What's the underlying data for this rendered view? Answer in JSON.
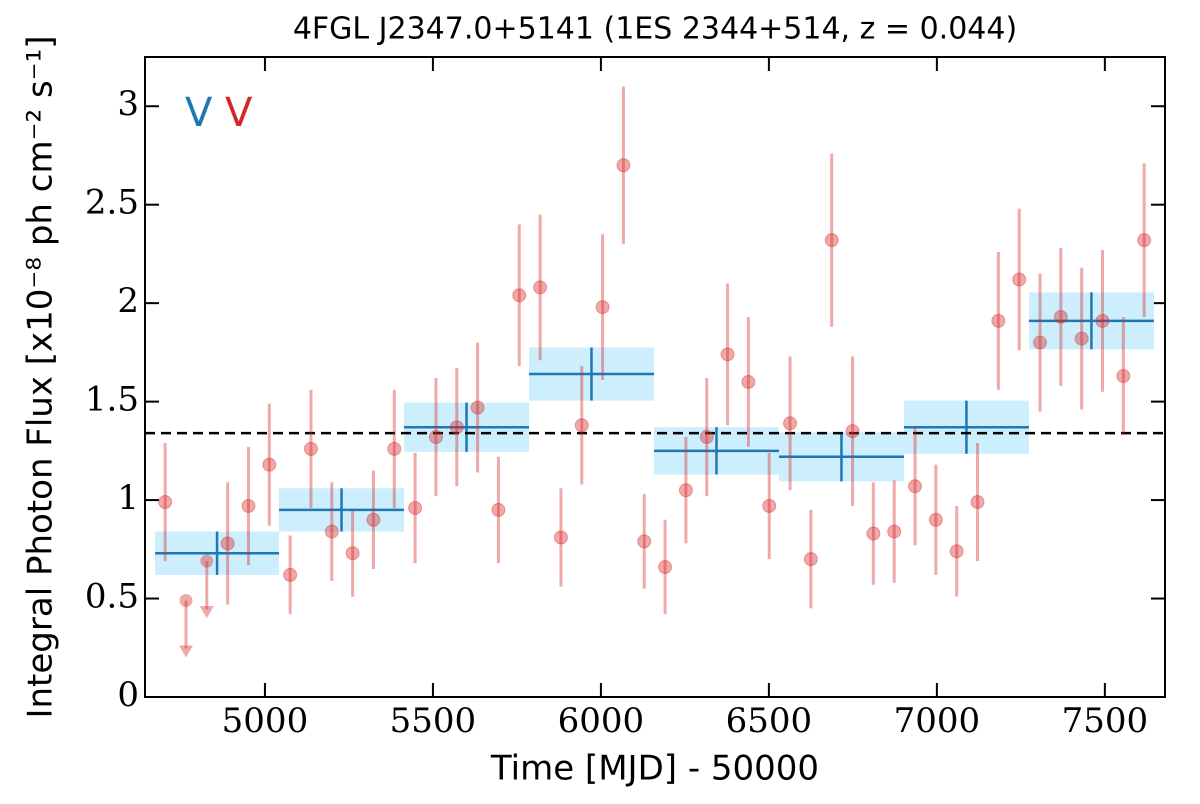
{
  "chart_data": {
    "type": "lightcurve",
    "title": "4FGL J2347.0+5141 (1ES 2344+514, z = 0.044)",
    "xlabel": "Time [MJD] - 50000",
    "ylabel": "Integral Photon Flux [x10⁻⁸ ph cm⁻² s⁻¹]",
    "xlim": [
      4643,
      7679
    ],
    "ylim": [
      0,
      3.25
    ],
    "xticks": [
      5000,
      5500,
      6000,
      6500,
      7000,
      7500
    ],
    "yticks": [
      0,
      0.5,
      1,
      1.5,
      2,
      2.5,
      3
    ],
    "hline": 1.34,
    "annotations": [
      {
        "text": "V",
        "color": "#1f77b4"
      },
      {
        "text": "V",
        "color": "#d62728"
      }
    ],
    "points": {
      "color": "#d62728",
      "x": [
        4703,
        4889,
        4951,
        5013,
        5075,
        5137,
        5199,
        5261,
        5323,
        5385,
        5447,
        5509,
        5571,
        5633,
        5695,
        5757,
        5819,
        5881,
        5943,
        6005,
        6067,
        6129,
        6191,
        6253,
        6315,
        6377,
        6439,
        6501,
        6563,
        6625,
        6687,
        6749,
        6811,
        6873,
        6935,
        6997,
        7059,
        7121,
        7183,
        7245,
        7307,
        7369,
        7431,
        7493,
        7555,
        7617
      ],
      "values": [
        0.99,
        0.78,
        0.97,
        1.18,
        0.62,
        1.26,
        0.84,
        0.73,
        0.9,
        1.26,
        0.96,
        1.32,
        1.37,
        1.47,
        0.95,
        2.04,
        2.08,
        0.81,
        1.38,
        1.98,
        2.7,
        0.79,
        0.66,
        1.05,
        1.32,
        1.74,
        1.6,
        0.97,
        1.39,
        0.7,
        2.32,
        1.35,
        0.83,
        0.84,
        1.07,
        0.9,
        0.74,
        0.99,
        1.91,
        2.12,
        1.8,
        1.93,
        1.82,
        1.91,
        1.63,
        2.32
      ],
      "errors": [
        0.3,
        0.31,
        0.3,
        0.31,
        0.2,
        0.3,
        0.25,
        0.22,
        0.25,
        0.3,
        0.28,
        0.3,
        0.3,
        0.33,
        0.27,
        0.36,
        0.37,
        0.25,
        0.3,
        0.37,
        0.4,
        0.24,
        0.24,
        0.27,
        0.3,
        0.36,
        0.33,
        0.27,
        0.34,
        0.25,
        0.44,
        0.38,
        0.26,
        0.26,
        0.3,
        0.28,
        0.23,
        0.3,
        0.35,
        0.36,
        0.35,
        0.35,
        0.36,
        0.36,
        0.3,
        0.39
      ]
    },
    "upper_limits": {
      "color": "#d62728",
      "x": [
        4765,
        4827
      ],
      "values": [
        0.49,
        0.69
      ]
    },
    "bins": {
      "color": "#1f77b4",
      "fill": "#cdeefc",
      "edges": [
        4673,
        5042,
        5414,
        5786,
        6158,
        6530,
        6902,
        7274,
        7646
      ],
      "values": [
        0.73,
        0.95,
        1.37,
        1.64,
        1.25,
        1.22,
        1.37,
        1.91
      ],
      "errors": [
        0.11,
        0.11,
        0.125,
        0.135,
        0.12,
        0.125,
        0.135,
        0.145
      ]
    }
  }
}
